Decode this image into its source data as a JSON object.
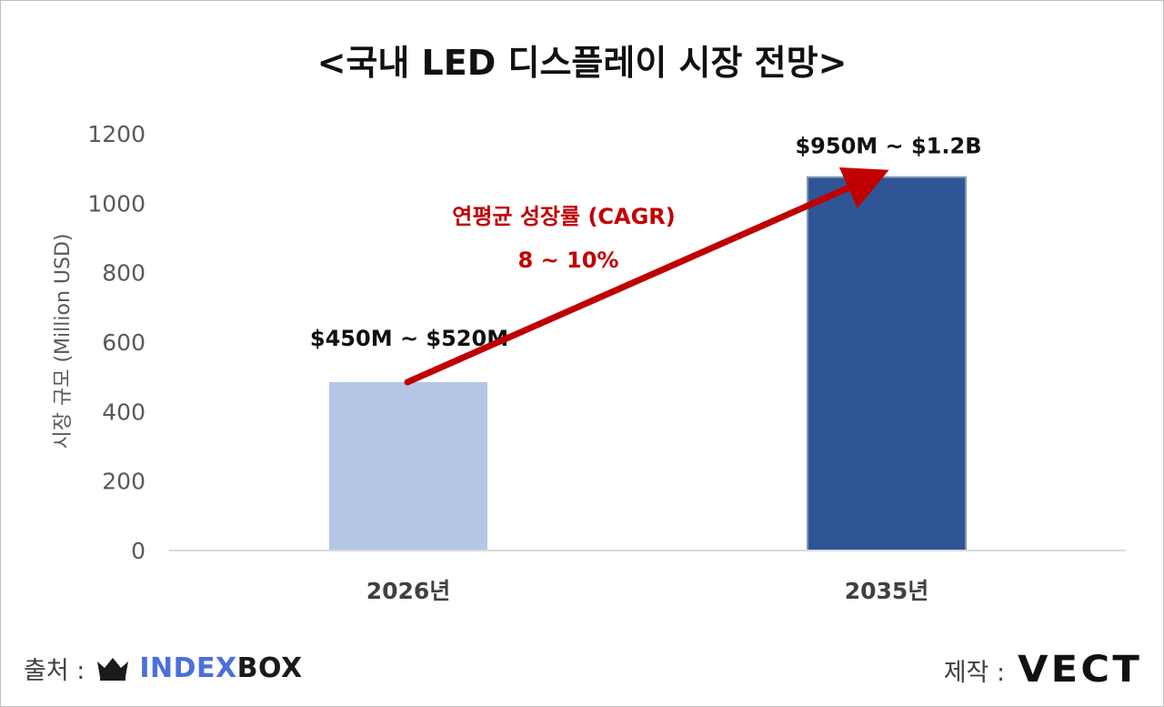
{
  "chart_data": {
    "type": "bar",
    "title": "<국내 LED 디스플레이 시장 전망>",
    "ylabel": "시장 규모 (Million USD)",
    "xlabel": "",
    "categories": [
      "2026년",
      "2035년"
    ],
    "values": [
      485,
      1075
    ],
    "data_labels": [
      "$450M ~ $520M",
      "$950M ~ $1.2B"
    ],
    "bar_colors": [
      "#b4c7e7",
      "#2f5597"
    ],
    "ylim": [
      0,
      1200
    ],
    "yticks": [
      0,
      200,
      400,
      600,
      800,
      1000,
      1200
    ],
    "ytick_labels": [
      "0",
      "200",
      "400",
      "600",
      "800",
      "1000",
      "1200"
    ],
    "grid": false,
    "annotation": {
      "line1": "연평균 성장률 (CAGR)",
      "line2": "8 ~ 10%",
      "color": "#c00000"
    }
  },
  "footer": {
    "source_label": "출처 :",
    "source_brand_part1": "INDEX",
    "source_brand_part2": "BOX",
    "source_icon": "crown-icon",
    "maker_label": "제작 :",
    "maker_brand": "VECT"
  }
}
